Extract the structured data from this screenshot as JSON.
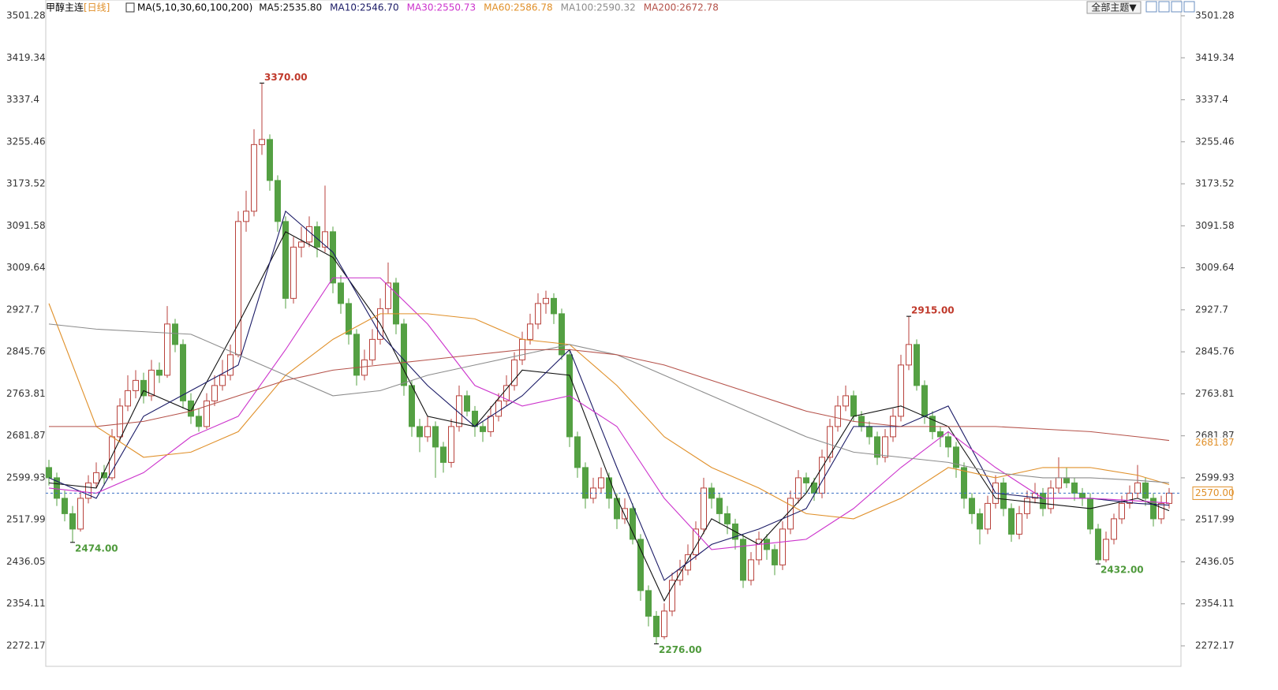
{
  "chart_data": {
    "type": "candlestick",
    "title": "甲醇主连",
    "period": "[日线]",
    "ma_caption": "MA(5,10,30,60,100,200)",
    "button": "全部主题▼",
    "up_color": "#b8423c",
    "down_color": "#54a043",
    "ylim": [
      2272.17,
      3501.28
    ],
    "yticks": [
      3501.28,
      3419.34,
      3337.4,
      3255.46,
      3173.52,
      3091.58,
      3009.64,
      2927.7,
      2845.76,
      2763.81,
      2681.87,
      2599.93,
      2517.99,
      2436.05,
      2354.11,
      2272.17
    ],
    "ohlc": [
      [
        2620,
        2635,
        2585,
        2600
      ],
      [
        2600,
        2610,
        2545,
        2560
      ],
      [
        2560,
        2575,
        2515,
        2530
      ],
      [
        2530,
        2545,
        2474,
        2500
      ],
      [
        2500,
        2575,
        2495,
        2560
      ],
      [
        2560,
        2605,
        2550,
        2590
      ],
      [
        2590,
        2630,
        2580,
        2610
      ],
      [
        2610,
        2625,
        2585,
        2600
      ],
      [
        2600,
        2695,
        2595,
        2680
      ],
      [
        2680,
        2755,
        2670,
        2740
      ],
      [
        2740,
        2800,
        2730,
        2770
      ],
      [
        2770,
        2810,
        2755,
        2790
      ],
      [
        2790,
        2805,
        2745,
        2760
      ],
      [
        2760,
        2830,
        2750,
        2810
      ],
      [
        2810,
        2825,
        2785,
        2800
      ],
      [
        2800,
        2935,
        2795,
        2900
      ],
      [
        2900,
        2910,
        2845,
        2860
      ],
      [
        2860,
        2870,
        2735,
        2750
      ],
      [
        2750,
        2765,
        2705,
        2720
      ],
      [
        2720,
        2735,
        2690,
        2700
      ],
      [
        2700,
        2765,
        2695,
        2750
      ],
      [
        2750,
        2800,
        2740,
        2780
      ],
      [
        2780,
        2830,
        2770,
        2800
      ],
      [
        2800,
        2860,
        2790,
        2840
      ],
      [
        2840,
        3120,
        2835,
        3100
      ],
      [
        3100,
        3160,
        3080,
        3120
      ],
      [
        3120,
        3280,
        3110,
        3250
      ],
      [
        3250,
        3370,
        3230,
        3260
      ],
      [
        3260,
        3270,
        3160,
        3180
      ],
      [
        3180,
        3190,
        3080,
        3100
      ],
      [
        3100,
        3110,
        2930,
        2950
      ],
      [
        2950,
        3070,
        2940,
        3050
      ],
      [
        3050,
        3090,
        3030,
        3060
      ],
      [
        3060,
        3110,
        3050,
        3090
      ],
      [
        3090,
        3100,
        3030,
        3050
      ],
      [
        3050,
        3170,
        3040,
        3080
      ],
      [
        3080,
        3090,
        2960,
        2980
      ],
      [
        2980,
        2995,
        2920,
        2940
      ],
      [
        2940,
        2950,
        2860,
        2880
      ],
      [
        2880,
        2890,
        2780,
        2800
      ],
      [
        2800,
        2850,
        2790,
        2830
      ],
      [
        2830,
        2890,
        2820,
        2870
      ],
      [
        2870,
        2950,
        2860,
        2930
      ],
      [
        2930,
        3020,
        2920,
        2980
      ],
      [
        2980,
        2990,
        2880,
        2900
      ],
      [
        2900,
        2910,
        2760,
        2780
      ],
      [
        2780,
        2790,
        2680,
        2700
      ],
      [
        2700,
        2715,
        2650,
        2680
      ],
      [
        2680,
        2720,
        2670,
        2700
      ],
      [
        2700,
        2710,
        2600,
        2660
      ],
      [
        2660,
        2670,
        2610,
        2630
      ],
      [
        2630,
        2715,
        2620,
        2700
      ],
      [
        2700,
        2780,
        2690,
        2760
      ],
      [
        2760,
        2770,
        2720,
        2730
      ],
      [
        2730,
        2740,
        2680,
        2700
      ],
      [
        2700,
        2710,
        2670,
        2690
      ],
      [
        2690,
        2740,
        2680,
        2720
      ],
      [
        2720,
        2765,
        2710,
        2750
      ],
      [
        2750,
        2800,
        2740,
        2780
      ],
      [
        2780,
        2845,
        2770,
        2830
      ],
      [
        2830,
        2885,
        2820,
        2870
      ],
      [
        2870,
        2920,
        2860,
        2900
      ],
      [
        2900,
        2960,
        2890,
        2940
      ],
      [
        2940,
        2965,
        2920,
        2950
      ],
      [
        2950,
        2960,
        2900,
        2920
      ],
      [
        2920,
        2930,
        2830,
        2840
      ],
      [
        2840,
        2850,
        2660,
        2680
      ],
      [
        2680,
        2690,
        2600,
        2620
      ],
      [
        2620,
        2630,
        2540,
        2560
      ],
      [
        2560,
        2600,
        2550,
        2580
      ],
      [
        2580,
        2620,
        2570,
        2600
      ],
      [
        2600,
        2610,
        2540,
        2560
      ],
      [
        2560,
        2570,
        2500,
        2520
      ],
      [
        2520,
        2560,
        2510,
        2540
      ],
      [
        2540,
        2550,
        2470,
        2480
      ],
      [
        2480,
        2490,
        2360,
        2380
      ],
      [
        2380,
        2390,
        2310,
        2330
      ],
      [
        2330,
        2340,
        2276,
        2290
      ],
      [
        2290,
        2355,
        2285,
        2340
      ],
      [
        2340,
        2415,
        2330,
        2400
      ],
      [
        2400,
        2440,
        2390,
        2420
      ],
      [
        2420,
        2470,
        2410,
        2450
      ],
      [
        2450,
        2515,
        2440,
        2500
      ],
      [
        2500,
        2600,
        2490,
        2580
      ],
      [
        2580,
        2590,
        2540,
        2560
      ],
      [
        2560,
        2570,
        2510,
        2530
      ],
      [
        2530,
        2545,
        2490,
        2510
      ],
      [
        2510,
        2520,
        2460,
        2480
      ],
      [
        2480,
        2490,
        2385,
        2400
      ],
      [
        2400,
        2455,
        2390,
        2440
      ],
      [
        2440,
        2495,
        2430,
        2480
      ],
      [
        2480,
        2490,
        2440,
        2460
      ],
      [
        2460,
        2470,
        2410,
        2430
      ],
      [
        2430,
        2515,
        2420,
        2500
      ],
      [
        2500,
        2575,
        2490,
        2560
      ],
      [
        2560,
        2615,
        2550,
        2600
      ],
      [
        2600,
        2610,
        2570,
        2590
      ],
      [
        2590,
        2600,
        2555,
        2570
      ],
      [
        2570,
        2655,
        2560,
        2640
      ],
      [
        2640,
        2715,
        2630,
        2700
      ],
      [
        2700,
        2760,
        2690,
        2740
      ],
      [
        2740,
        2780,
        2730,
        2760
      ],
      [
        2760,
        2770,
        2710,
        2720
      ],
      [
        2720,
        2730,
        2690,
        2700
      ],
      [
        2700,
        2710,
        2665,
        2680
      ],
      [
        2680,
        2690,
        2625,
        2640
      ],
      [
        2640,
        2695,
        2630,
        2680
      ],
      [
        2680,
        2735,
        2670,
        2720
      ],
      [
        2720,
        2840,
        2710,
        2820
      ],
      [
        2820,
        2915,
        2810,
        2860
      ],
      [
        2860,
        2870,
        2770,
        2780
      ],
      [
        2780,
        2790,
        2705,
        2720
      ],
      [
        2720,
        2730,
        2675,
        2690
      ],
      [
        2690,
        2700,
        2660,
        2680
      ],
      [
        2680,
        2690,
        2640,
        2660
      ],
      [
        2660,
        2670,
        2600,
        2620
      ],
      [
        2620,
        2630,
        2540,
        2560
      ],
      [
        2560,
        2570,
        2510,
        2530
      ],
      [
        2530,
        2540,
        2470,
        2500
      ],
      [
        2500,
        2565,
        2490,
        2550
      ],
      [
        2550,
        2605,
        2540,
        2590
      ],
      [
        2590,
        2600,
        2525,
        2540
      ],
      [
        2540,
        2550,
        2475,
        2490
      ],
      [
        2490,
        2545,
        2480,
        2530
      ],
      [
        2530,
        2575,
        2520,
        2560
      ],
      [
        2560,
        2590,
        2550,
        2570
      ],
      [
        2570,
        2580,
        2525,
        2540
      ],
      [
        2540,
        2595,
        2530,
        2580
      ],
      [
        2580,
        2640,
        2570,
        2600
      ],
      [
        2600,
        2620,
        2580,
        2590
      ],
      [
        2590,
        2600,
        2555,
        2570
      ],
      [
        2570,
        2580,
        2545,
        2560
      ],
      [
        2560,
        2570,
        2490,
        2500
      ],
      [
        2500,
        2510,
        2432,
        2440
      ],
      [
        2440,
        2495,
        2435,
        2480
      ],
      [
        2480,
        2530,
        2470,
        2520
      ],
      [
        2520,
        2565,
        2510,
        2550
      ],
      [
        2550,
        2585,
        2540,
        2570
      ],
      [
        2570,
        2625,
        2560,
        2590
      ],
      [
        2590,
        2600,
        2545,
        2560
      ],
      [
        2560,
        2570,
        2505,
        2520
      ],
      [
        2520,
        2565,
        2510,
        2550
      ],
      [
        2550,
        2580,
        2540,
        2570
      ]
    ],
    "series": [
      {
        "name": "MA5:2535.80",
        "color": "#111111",
        "x": [
          0,
          6,
          12,
          18,
          24,
          30,
          36,
          42,
          48,
          54,
          60,
          66,
          72,
          78,
          84,
          90,
          96,
          102,
          108,
          114,
          120,
          126,
          132,
          138,
          142
        ],
        "values": [
          2590,
          2580,
          2770,
          2730,
          2900,
          3080,
          3030,
          2900,
          2720,
          2700,
          2810,
          2800,
          2560,
          2360,
          2520,
          2470,
          2570,
          2720,
          2740,
          2700,
          2560,
          2550,
          2540,
          2560,
          2535.8
        ]
      },
      {
        "name": "MA10:2546.70",
        "color": "#1a1a66",
        "x": [
          0,
          6,
          12,
          18,
          24,
          30,
          36,
          42,
          48,
          54,
          60,
          66,
          72,
          78,
          84,
          90,
          96,
          102,
          108,
          114,
          120,
          126,
          132,
          138,
          142
        ],
        "values": [
          2600,
          2560,
          2720,
          2770,
          2820,
          3120,
          3040,
          2880,
          2780,
          2700,
          2760,
          2850,
          2620,
          2400,
          2470,
          2500,
          2540,
          2700,
          2700,
          2740,
          2570,
          2560,
          2560,
          2550,
          2546.7
        ]
      },
      {
        "name": "MA30:2550.73",
        "color": "#cc33cc",
        "x": [
          0,
          6,
          12,
          18,
          24,
          30,
          36,
          42,
          48,
          54,
          60,
          66,
          72,
          78,
          84,
          90,
          96,
          102,
          108,
          114,
          120,
          126,
          132,
          138,
          142
        ],
        "values": [
          2580,
          2570,
          2610,
          2680,
          2720,
          2850,
          2990,
          2990,
          2900,
          2780,
          2740,
          2760,
          2700,
          2560,
          2460,
          2470,
          2480,
          2540,
          2620,
          2690,
          2620,
          2560,
          2560,
          2555,
          2550.73
        ]
      },
      {
        "name": "MA60:2586.78",
        "color": "#e0902a",
        "x": [
          0,
          6,
          12,
          18,
          24,
          30,
          36,
          42,
          48,
          54,
          60,
          66,
          72,
          78,
          84,
          90,
          96,
          102,
          108,
          114,
          120,
          126,
          132,
          138,
          142
        ],
        "values": [
          2940,
          2700,
          2640,
          2650,
          2690,
          2800,
          2870,
          2920,
          2920,
          2910,
          2870,
          2860,
          2780,
          2680,
          2620,
          2580,
          2530,
          2520,
          2560,
          2620,
          2600,
          2620,
          2620,
          2605,
          2586.78
        ]
      },
      {
        "name": "MA100:2590.32",
        "color": "#8c8c8c",
        "x": [
          0,
          6,
          12,
          18,
          24,
          30,
          36,
          42,
          48,
          54,
          60,
          66,
          72,
          78,
          84,
          90,
          96,
          102,
          108,
          114,
          120,
          126,
          132,
          138,
          142
        ],
        "values": [
          2900,
          2890,
          2885,
          2880,
          2840,
          2800,
          2760,
          2770,
          2800,
          2820,
          2840,
          2860,
          2840,
          2800,
          2760,
          2720,
          2680,
          2650,
          2640,
          2630,
          2610,
          2600,
          2600,
          2595,
          2590.32
        ]
      },
      {
        "name": "MA200:2672.78",
        "color": "#b5524a",
        "x": [
          0,
          6,
          12,
          18,
          24,
          30,
          36,
          42,
          48,
          54,
          60,
          66,
          72,
          78,
          84,
          90,
          96,
          102,
          108,
          114,
          120,
          126,
          132,
          138,
          142
        ],
        "values": [
          2700,
          2700,
          2710,
          2730,
          2760,
          2790,
          2810,
          2820,
          2830,
          2840,
          2850,
          2850,
          2840,
          2820,
          2790,
          2760,
          2730,
          2710,
          2700,
          2700,
          2700,
          2695,
          2690,
          2680,
          2672.78
        ]
      }
    ],
    "annotations": [
      {
        "x": 27,
        "value": 3370,
        "label": "3370.00",
        "color": "#c0392b"
      },
      {
        "x": 109,
        "value": 2915,
        "label": "2915.00",
        "color": "#c0392b"
      },
      {
        "x": 3,
        "value": 2474,
        "label": "2474.00",
        "color": "#4f9a3c"
      },
      {
        "x": 77,
        "value": 2276,
        "label": "2276.00",
        "color": "#4f9a3c"
      },
      {
        "x": 133,
        "value": 2432,
        "label": "2432.00",
        "color": "#4f9a3c"
      }
    ],
    "last_price": {
      "value": 2570,
      "label": "2570.00",
      "color": "#e0902a"
    },
    "flag": {
      "value": 2681.87,
      "label": "2681.87",
      "color": "#e0902a"
    }
  }
}
